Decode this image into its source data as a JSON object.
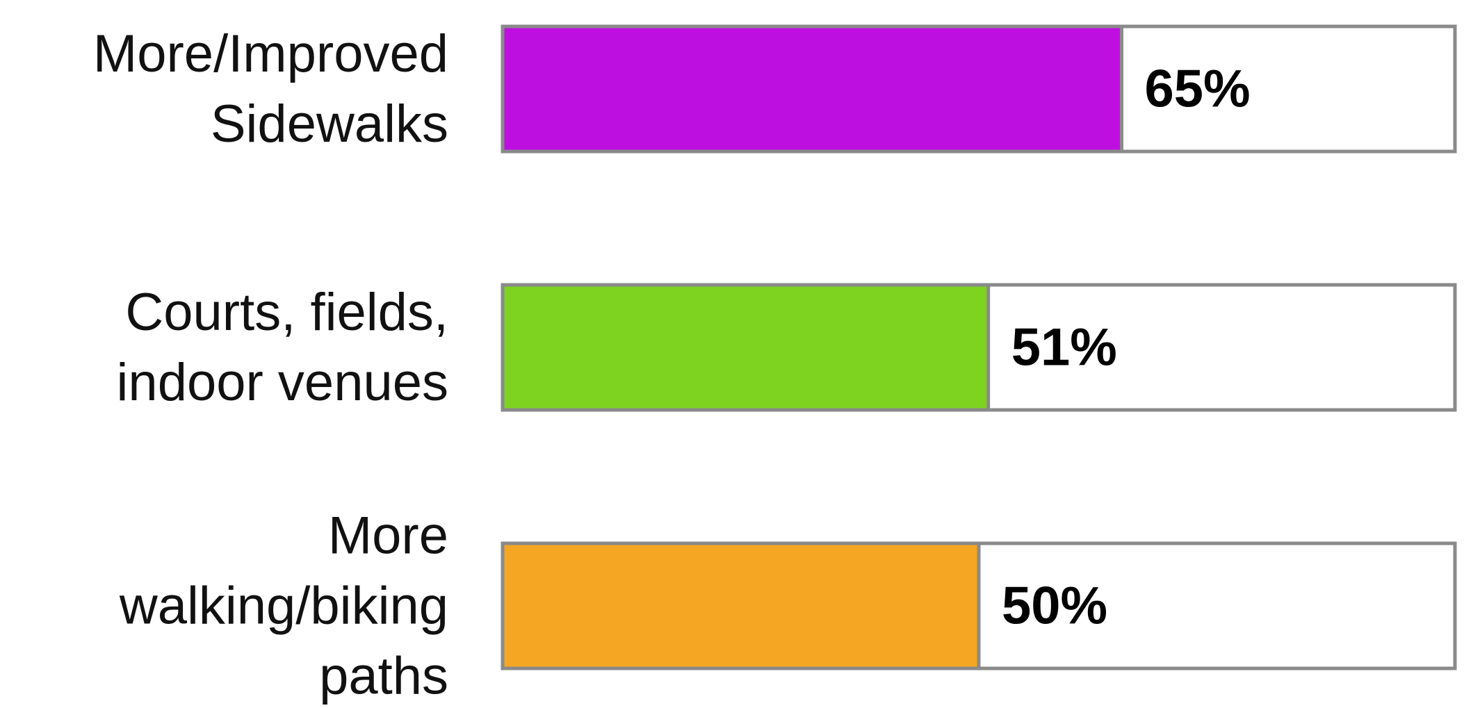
{
  "chart_data": {
    "type": "bar",
    "orientation": "horizontal",
    "categories": [
      [
        "More/Improved",
        "Sidewalks"
      ],
      [
        "Courts, fields,",
        "indoor venues"
      ],
      [
        "More",
        "walking/biking",
        "paths"
      ]
    ],
    "values": [
      65,
      51,
      50
    ],
    "value_labels": [
      "65%",
      "51%",
      "50%"
    ],
    "colors": [
      "#bd10e0",
      "#7ed321",
      "#f5a623"
    ],
    "xlim": [
      0,
      100
    ],
    "grid": false,
    "legend": "none"
  }
}
